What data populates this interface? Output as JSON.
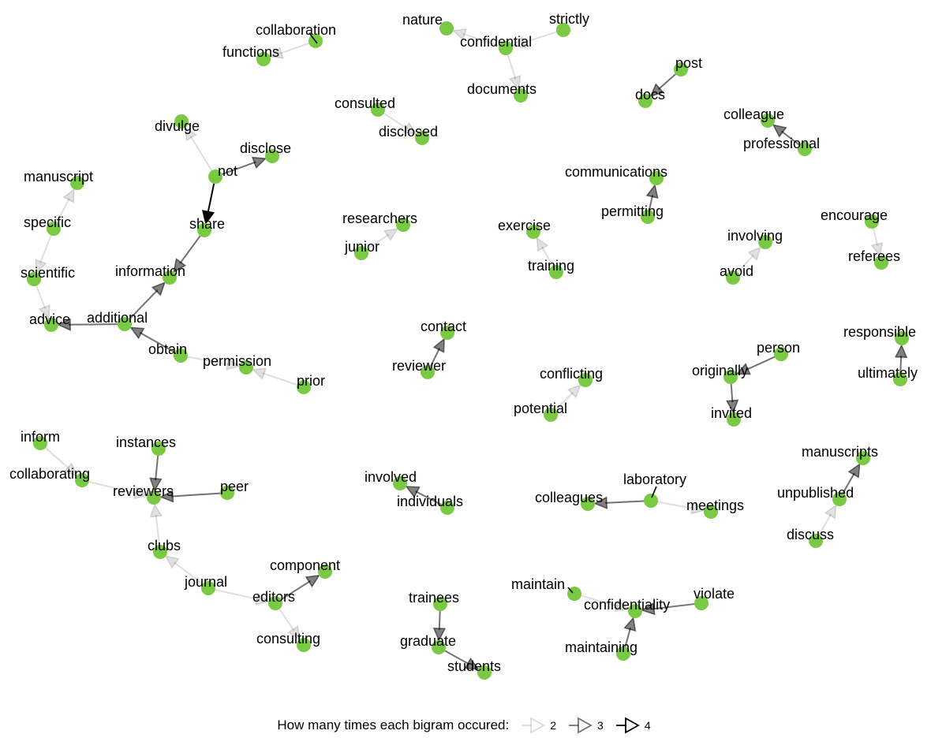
{
  "legend": {
    "title": "How many times each bigram occured:",
    "levels": [
      {
        "count": "2",
        "count_value": 2
      },
      {
        "count": "3",
        "count_value": 3
      },
      {
        "count": "4",
        "count_value": 4
      }
    ]
  },
  "colors": {
    "node": "#7ac943",
    "edge": "#000000",
    "text": "#000000"
  },
  "network": {
    "nodes": [
      {
        "id": "collaboration",
        "label": "collaboration"
      },
      {
        "id": "functions",
        "label": "functions"
      },
      {
        "id": "nature",
        "label": "nature"
      },
      {
        "id": "strictly",
        "label": "strictly"
      },
      {
        "id": "confidential",
        "label": "confidential"
      },
      {
        "id": "documents",
        "label": "documents"
      },
      {
        "id": "post",
        "label": "post"
      },
      {
        "id": "docs",
        "label": "docs"
      },
      {
        "id": "consulted",
        "label": "consulted"
      },
      {
        "id": "disclosed",
        "label": "disclosed"
      },
      {
        "id": "colleague",
        "label": "colleague"
      },
      {
        "id": "professional",
        "label": "professional"
      },
      {
        "id": "divulge",
        "label": "divulge"
      },
      {
        "id": "disclose",
        "label": "disclose"
      },
      {
        "id": "not",
        "label": "not"
      },
      {
        "id": "share",
        "label": "share"
      },
      {
        "id": "manuscript",
        "label": "manuscript"
      },
      {
        "id": "specific",
        "label": "specific"
      },
      {
        "id": "scientific",
        "label": "scientific"
      },
      {
        "id": "information",
        "label": "information"
      },
      {
        "id": "advice",
        "label": "advice"
      },
      {
        "id": "additional",
        "label": "additional"
      },
      {
        "id": "obtain",
        "label": "obtain"
      },
      {
        "id": "permission",
        "label": "permission"
      },
      {
        "id": "prior",
        "label": "prior"
      },
      {
        "id": "communications",
        "label": "communications"
      },
      {
        "id": "permitting",
        "label": "permitting"
      },
      {
        "id": "researchers",
        "label": "researchers"
      },
      {
        "id": "junior",
        "label": "junior"
      },
      {
        "id": "exercise",
        "label": "exercise"
      },
      {
        "id": "training",
        "label": "training"
      },
      {
        "id": "involving",
        "label": "involving"
      },
      {
        "id": "avoid",
        "label": "avoid"
      },
      {
        "id": "encourage",
        "label": "encourage"
      },
      {
        "id": "referees",
        "label": "referees"
      },
      {
        "id": "contact",
        "label": "contact"
      },
      {
        "id": "reviewer",
        "label": "reviewer"
      },
      {
        "id": "responsible",
        "label": "responsible"
      },
      {
        "id": "ultimately",
        "label": "ultimately"
      },
      {
        "id": "person",
        "label": "person"
      },
      {
        "id": "originally",
        "label": "originally"
      },
      {
        "id": "invited",
        "label": "invited"
      },
      {
        "id": "conflicting",
        "label": "conflicting"
      },
      {
        "id": "potential",
        "label": "potential"
      },
      {
        "id": "inform",
        "label": "inform"
      },
      {
        "id": "instances",
        "label": "instances"
      },
      {
        "id": "collaborating",
        "label": "collaborating"
      },
      {
        "id": "reviewers",
        "label": "reviewers"
      },
      {
        "id": "peer",
        "label": "peer"
      },
      {
        "id": "clubs",
        "label": "clubs"
      },
      {
        "id": "journal",
        "label": "journal"
      },
      {
        "id": "component",
        "label": "component"
      },
      {
        "id": "editors",
        "label": "editors"
      },
      {
        "id": "consulting",
        "label": "consulting"
      },
      {
        "id": "involved",
        "label": "involved"
      },
      {
        "id": "individuals",
        "label": "individuals"
      },
      {
        "id": "laboratory",
        "label": "laboratory"
      },
      {
        "id": "colleagues",
        "label": "colleagues"
      },
      {
        "id": "meetings",
        "label": "meetings"
      },
      {
        "id": "manuscripts",
        "label": "manuscripts"
      },
      {
        "id": "unpublished",
        "label": "unpublished"
      },
      {
        "id": "discuss",
        "label": "discuss"
      },
      {
        "id": "trainees",
        "label": "trainees"
      },
      {
        "id": "graduate",
        "label": "graduate"
      },
      {
        "id": "students",
        "label": "students"
      },
      {
        "id": "maintain",
        "label": "maintain"
      },
      {
        "id": "confidentiality",
        "label": "confidentiality"
      },
      {
        "id": "violate",
        "label": "violate"
      },
      {
        "id": "maintaining",
        "label": "maintaining"
      }
    ],
    "edges": [
      {
        "from": "collaboration",
        "to": "functions",
        "count": 2
      },
      {
        "from": "confidential",
        "to": "nature",
        "count": 2
      },
      {
        "from": "strictly",
        "to": "confidential",
        "count": 2
      },
      {
        "from": "confidential",
        "to": "documents",
        "count": 2
      },
      {
        "from": "post",
        "to": "docs",
        "count": 3
      },
      {
        "from": "consulted",
        "to": "disclosed",
        "count": 2
      },
      {
        "from": "professional",
        "to": "colleague",
        "count": 3
      },
      {
        "from": "not",
        "to": "divulge",
        "count": 2
      },
      {
        "from": "not",
        "to": "disclose",
        "count": 3
      },
      {
        "from": "not",
        "to": "share",
        "count": 4
      },
      {
        "from": "share",
        "to": "information",
        "count": 3
      },
      {
        "from": "specific",
        "to": "manuscript",
        "count": 2
      },
      {
        "from": "specific",
        "to": "scientific",
        "count": 2
      },
      {
        "from": "scientific",
        "to": "advice",
        "count": 2
      },
      {
        "from": "additional",
        "to": "advice",
        "count": 3
      },
      {
        "from": "additional",
        "to": "information",
        "count": 3
      },
      {
        "from": "obtain",
        "to": "additional",
        "count": 3
      },
      {
        "from": "obtain",
        "to": "permission",
        "count": 2
      },
      {
        "from": "prior",
        "to": "permission",
        "count": 2
      },
      {
        "from": "permitting",
        "to": "communications",
        "count": 3
      },
      {
        "from": "junior",
        "to": "researchers",
        "count": 2
      },
      {
        "from": "training",
        "to": "exercise",
        "count": 2
      },
      {
        "from": "avoid",
        "to": "involving",
        "count": 2
      },
      {
        "from": "encourage",
        "to": "referees",
        "count": 2
      },
      {
        "from": "reviewer",
        "to": "contact",
        "count": 3
      },
      {
        "from": "ultimately",
        "to": "responsible",
        "count": 3
      },
      {
        "from": "person",
        "to": "originally",
        "count": 3
      },
      {
        "from": "originally",
        "to": "invited",
        "count": 3
      },
      {
        "from": "potential",
        "to": "conflicting",
        "count": 2
      },
      {
        "from": "inform",
        "to": "collaborating",
        "count": 2
      },
      {
        "from": "collaborating",
        "to": "reviewers",
        "count": 2
      },
      {
        "from": "instances",
        "to": "reviewers",
        "count": 3
      },
      {
        "from": "peer",
        "to": "reviewers",
        "count": 3
      },
      {
        "from": "clubs",
        "to": "reviewers",
        "count": 2
      },
      {
        "from": "journal",
        "to": "clubs",
        "count": 2
      },
      {
        "from": "journal",
        "to": "editors",
        "count": 2
      },
      {
        "from": "editors",
        "to": "component",
        "count": 3
      },
      {
        "from": "editors",
        "to": "consulting",
        "count": 2
      },
      {
        "from": "individuals",
        "to": "involved",
        "count": 3
      },
      {
        "from": "laboratory",
        "to": "colleagues",
        "count": 3
      },
      {
        "from": "laboratory",
        "to": "meetings",
        "count": 2
      },
      {
        "from": "unpublished",
        "to": "manuscripts",
        "count": 3
      },
      {
        "from": "discuss",
        "to": "unpublished",
        "count": 2
      },
      {
        "from": "trainees",
        "to": "graduate",
        "count": 3
      },
      {
        "from": "graduate",
        "to": "students",
        "count": 3
      },
      {
        "from": "maintain",
        "to": "confidentiality",
        "count": 2
      },
      {
        "from": "violate",
        "to": "confidentiality",
        "count": 3
      },
      {
        "from": "maintaining",
        "to": "confidentiality",
        "count": 3
      }
    ]
  }
}
